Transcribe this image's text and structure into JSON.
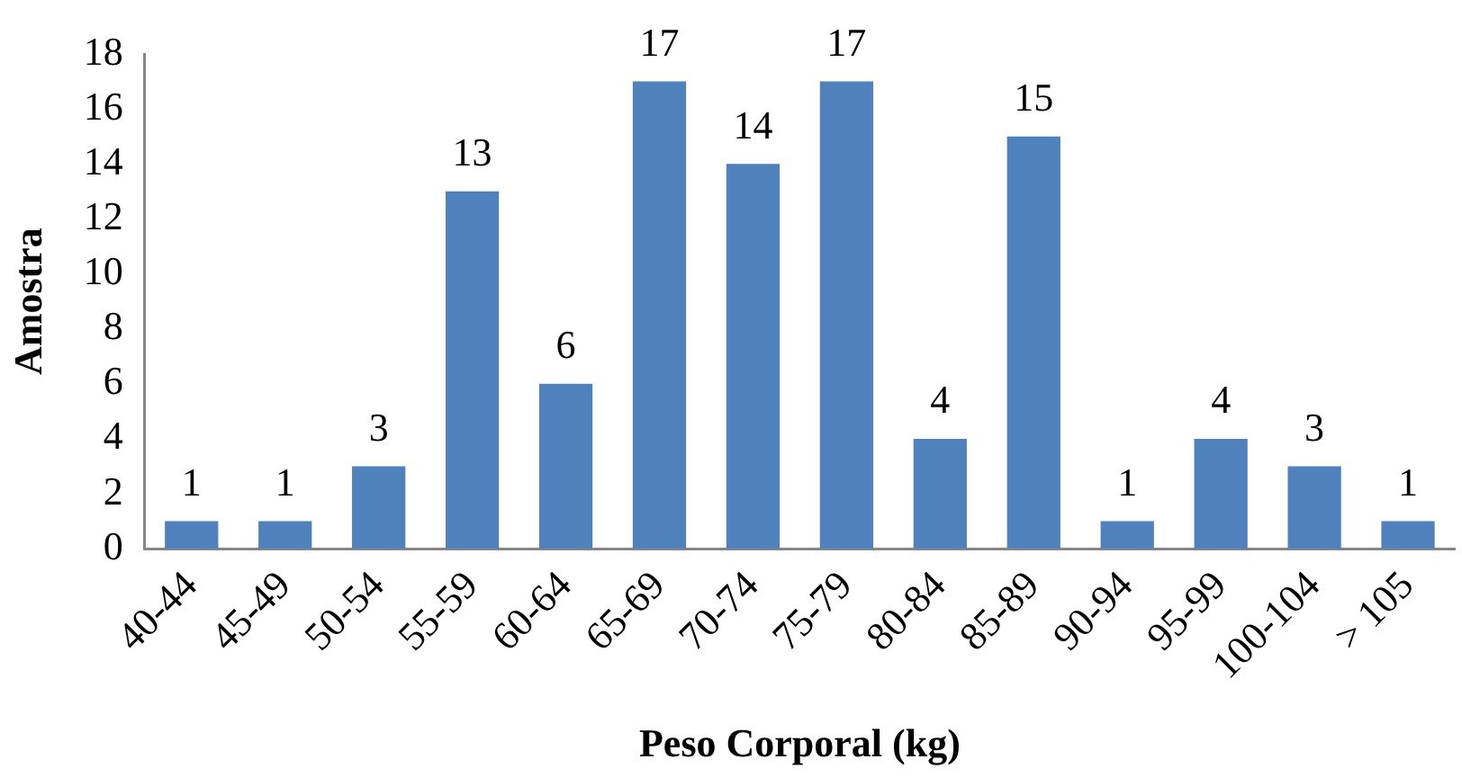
{
  "chart_data": {
    "type": "bar",
    "xlabel": "Peso Corporal (kg)",
    "ylabel": "Amostra",
    "categories": [
      "40-44",
      "45-49",
      "50-54",
      "55-59",
      "60-64",
      "65-69",
      "70-74",
      "75-79",
      "80-84",
      "85-89",
      "90-94",
      "95-99",
      "100-104",
      "> 105"
    ],
    "values": [
      1,
      1,
      3,
      13,
      6,
      17,
      14,
      17,
      4,
      15,
      1,
      4,
      3,
      1
    ],
    "color": "#4f81bd",
    "ylim": [
      0,
      18
    ],
    "yticks": [
      0,
      2,
      4,
      6,
      8,
      10,
      12,
      14,
      16,
      18
    ],
    "data_labels": true
  }
}
